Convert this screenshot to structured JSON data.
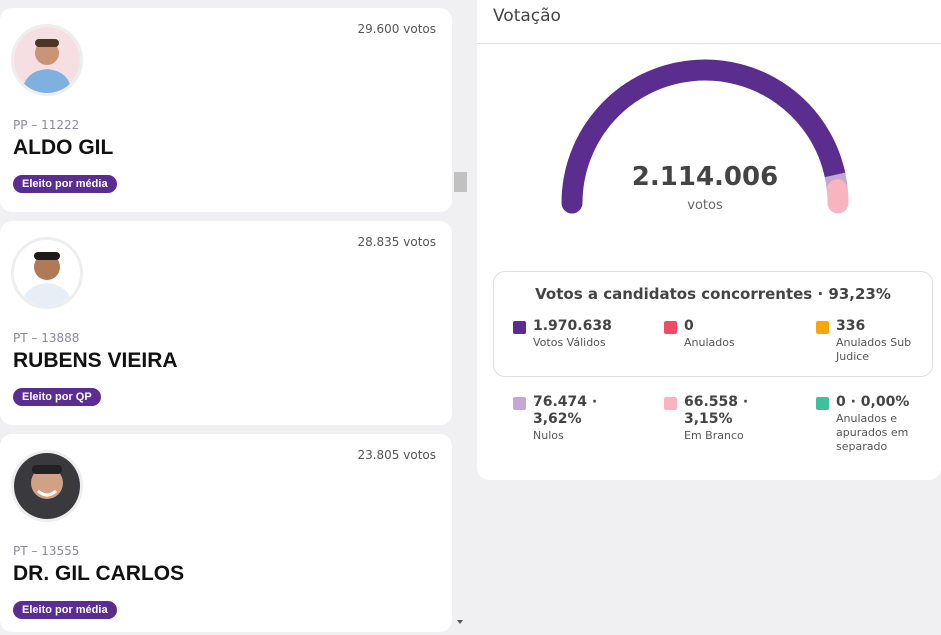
{
  "candidates": [
    {
      "votes": "29.600 votos",
      "party": "PP – 11222",
      "name": "ALDO GIL",
      "badge": "Eleito por média"
    },
    {
      "votes": "28.835 votos",
      "party": "PT – 13888",
      "name": "RUBENS VIEIRA",
      "badge": "Eleito por QP"
    },
    {
      "votes": "23.805 votos",
      "party": "PT – 13555",
      "name": "DR. GIL CARLOS",
      "badge": "Eleito por média"
    }
  ],
  "panel": {
    "title": "Votação",
    "total": {
      "value": 2114006,
      "label": "2.114.006"
    },
    "total_unit": "votos",
    "box_title": "Votos a candidatos concorrentes · 93,23%",
    "items": [
      {
        "value": 1970638,
        "label": "1.970.638",
        "name": "Votos Válidos",
        "color": "#5b2d8e",
        "gauge": true
      },
      {
        "value": 0,
        "label": "0",
        "name": "Anulados",
        "color": "#ec4d64",
        "gauge": false
      },
      {
        "value": 336,
        "label": "336",
        "name": "Anulados Sub Judice",
        "color": "#f5a70f",
        "gauge": false
      },
      {
        "value": 76474,
        "label": "76.474 · 3,62%",
        "name": "Nulos",
        "color": "#c3a8d5",
        "gauge": true
      },
      {
        "value": 66558,
        "label": "66.558 · 3,15%",
        "name": "Em Branco",
        "color": "#f8b4bf",
        "gauge": true
      },
      {
        "value": 0,
        "label": "0 · 0,00%",
        "name": "Anulados e apurados em separado",
        "color": "#3fbf9c",
        "gauge": false
      }
    ]
  }
}
